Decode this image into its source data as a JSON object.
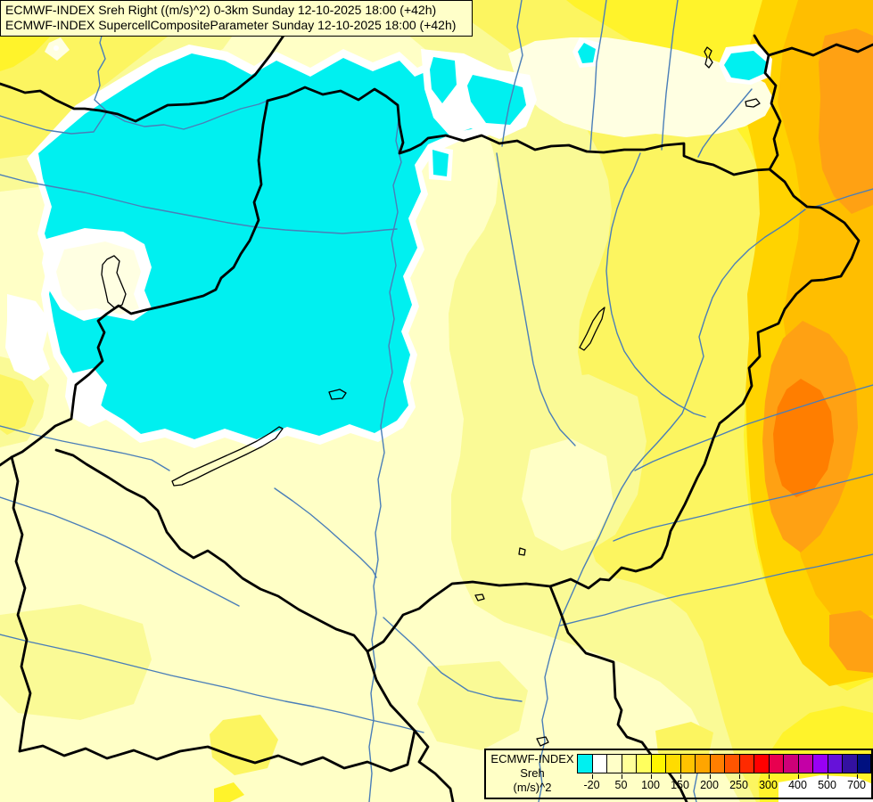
{
  "titles": {
    "line1": "ECMWF-INDEX Sreh Right ((m/s)^2) 0-3km Sunday 12-10-2025 18:00 (+42h)",
    "line2": "ECMWF-INDEX SupercellCompositeParameter Sunday 12-10-2025 18:00 (+42h)"
  },
  "legend": {
    "product": "ECMWF-INDEX",
    "parameter": "Sreh",
    "units": "(m/s)^2",
    "tick_labels": [
      "-20",
      "50",
      "100",
      "150",
      "200",
      "250",
      "300",
      "400",
      "500",
      "700"
    ],
    "colors": [
      "#00F0F0",
      "#FFFFFF",
      "#FFFFC8",
      "#FFFF99",
      "#FFFF5E",
      "#FFF500",
      "#FFDC00",
      "#FFC300",
      "#FFA500",
      "#FF7F00",
      "#FF5500",
      "#FF2A00",
      "#FF0000",
      "#E8004F",
      "#CE0078",
      "#C400A6",
      "#9900F5",
      "#6612D9",
      "#3311A0",
      "#001080"
    ]
  },
  "map": {
    "region": "Hungary / Carpathian Basin",
    "palette": {
      "cyan": "#00F0F0",
      "white": "#FFFFFF",
      "cream": "#FFFFE2",
      "base_pale_yellow": "#FFFFC6",
      "pale_yellow": "#FAFA96",
      "light_yellow": "#FCF560",
      "yellow": "#FFF32B",
      "gold": "#FFD300",
      "amber": "#FFBE00",
      "orange": "#FFA113",
      "deep_orange": "#FF7E00",
      "border_color": "#000000",
      "river_color": "#4A7EB8"
    }
  }
}
